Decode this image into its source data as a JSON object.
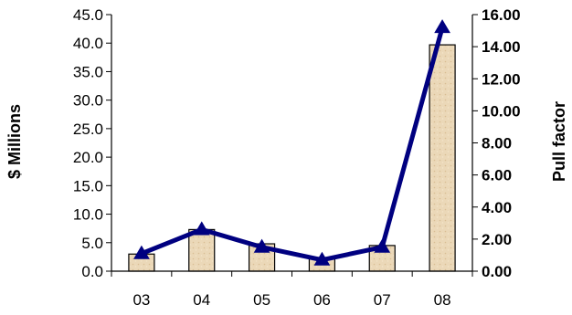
{
  "chart_data": {
    "type": "bar",
    "categories": [
      "03",
      "04",
      "05",
      "06",
      "07",
      "08"
    ],
    "series": [
      {
        "type": "bar",
        "axis": "left",
        "values": [
          3.0,
          7.3,
          4.8,
          2.4,
          4.5,
          39.7
        ],
        "color": "#E8D2AE"
      },
      {
        "type": "line",
        "axis": "right",
        "marker": "triangle",
        "values": [
          1.1,
          2.6,
          1.5,
          0.7,
          1.5,
          15.2
        ],
        "color": "#000080"
      }
    ],
    "ylabel": "$ Millions",
    "y2label": "Pull factor",
    "ylim": [
      0,
      45
    ],
    "y2lim": [
      0,
      16
    ],
    "yticks": [
      "0.0",
      "5.0",
      "10.0",
      "15.0",
      "20.0",
      "25.0",
      "30.0",
      "35.0",
      "40.0",
      "45.0"
    ],
    "y2ticks": [
      "0.00",
      "2.00",
      "4.00",
      "6.00",
      "8.00",
      "10.00",
      "12.00",
      "14.00",
      "16.00"
    ],
    "grid": false,
    "legend": "none"
  }
}
